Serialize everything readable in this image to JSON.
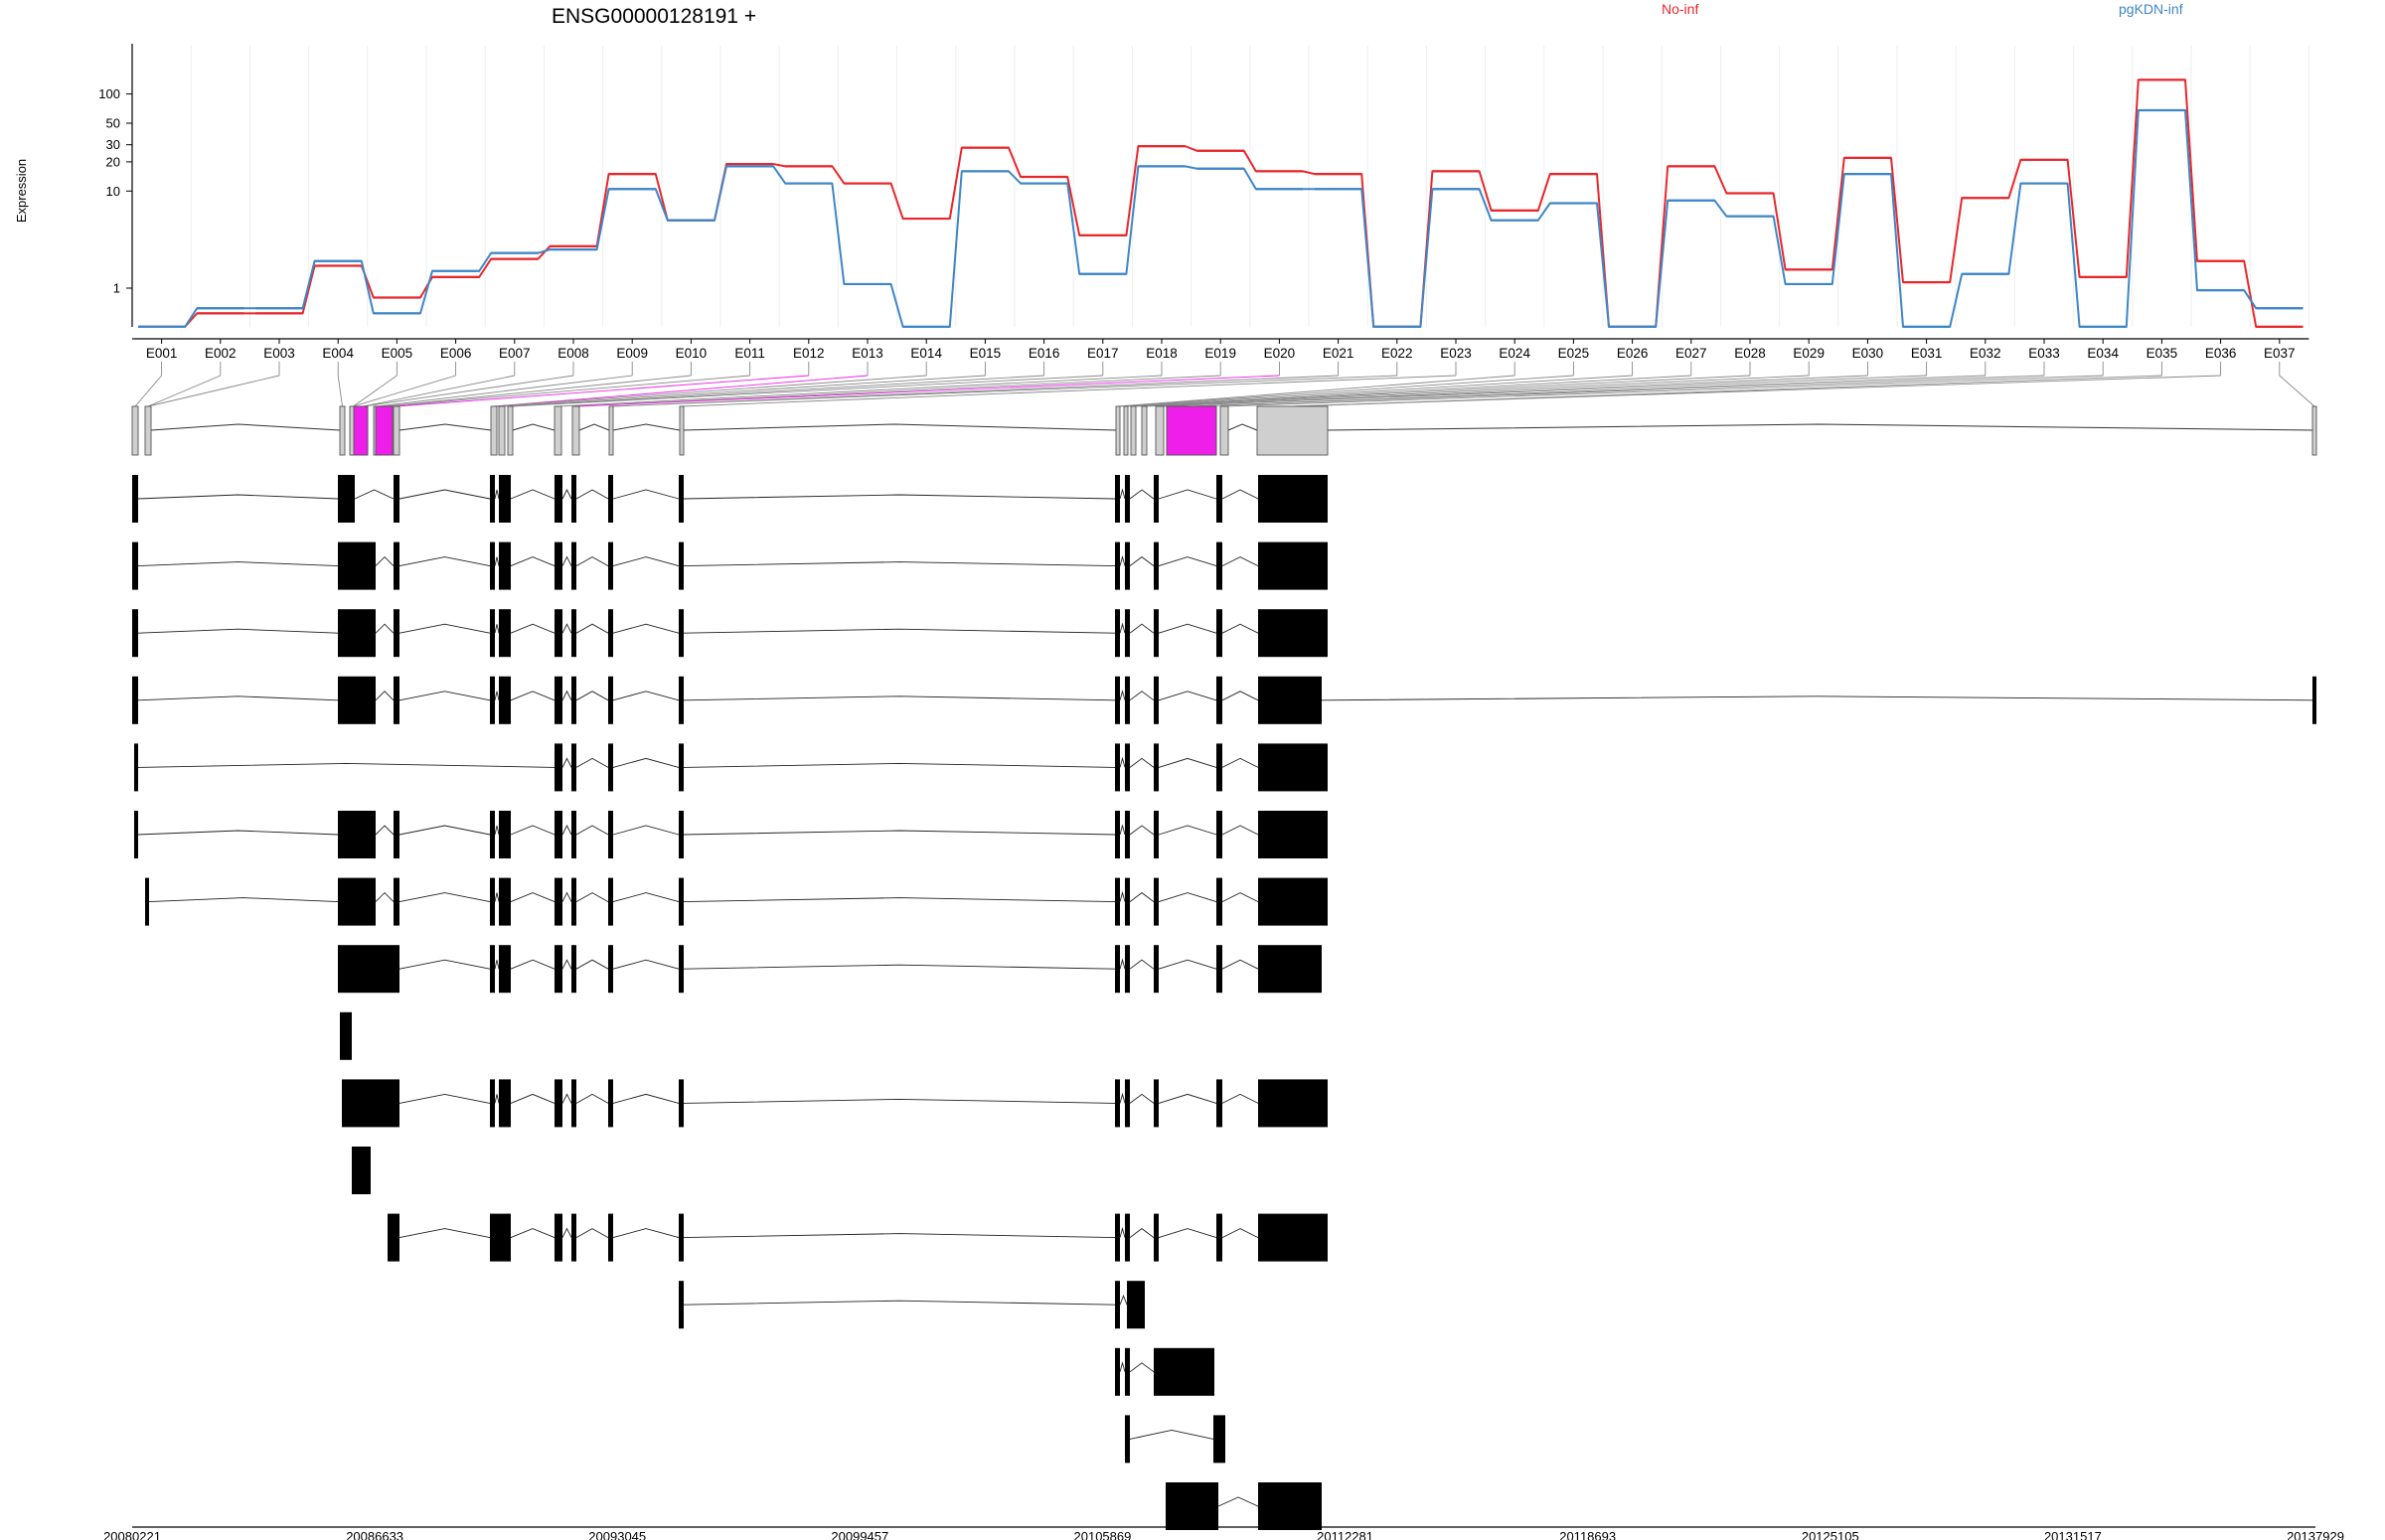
{
  "title": "ENSG00000128191 +",
  "legend": [
    {
      "name": "No-inf",
      "color": "#e8272b"
    },
    {
      "name": "pgKDN-inf",
      "color": "#3f86c7"
    }
  ],
  "chart_data": {
    "type": "line",
    "ylabel": "Expression",
    "yscale": "log",
    "yticks": [
      1,
      10,
      20,
      30,
      50,
      100
    ],
    "categories": [
      "E001",
      "E002",
      "E003",
      "E004",
      "E005",
      "E006",
      "E007",
      "E008",
      "E009",
      "E010",
      "E011",
      "E012",
      "E013",
      "E014",
      "E015",
      "E016",
      "E017",
      "E018",
      "E019",
      "E020",
      "E021",
      "E022",
      "E023",
      "E024",
      "E025",
      "E026",
      "E027",
      "E028",
      "E029",
      "E030",
      "E031",
      "E032",
      "E033",
      "E034",
      "E035",
      "E036",
      "E037"
    ],
    "series": [
      {
        "name": "No-inf",
        "color": "#e8272b",
        "values": [
          0.4,
          0.55,
          0.55,
          1.7,
          0.8,
          1.3,
          2.0,
          2.7,
          15,
          5,
          19,
          18,
          12,
          5.2,
          28,
          14,
          3.5,
          29,
          26,
          16,
          15,
          0.4,
          16,
          6.3,
          15,
          0.4,
          18,
          9.5,
          1.55,
          22,
          1.15,
          8.5,
          21,
          1.3,
          140,
          1.9,
          0.4
        ]
      },
      {
        "name": "pgKDN-inf",
        "color": "#3f86c7",
        "values": [
          0.4,
          0.62,
          0.62,
          1.9,
          0.55,
          1.5,
          2.3,
          2.5,
          10.5,
          5,
          18,
          12,
          1.1,
          0.4,
          16,
          12,
          1.4,
          18,
          17,
          10.5,
          10.5,
          0.4,
          10.5,
          5.0,
          7.5,
          0.4,
          8.0,
          5.5,
          1.1,
          15,
          0.4,
          1.4,
          12,
          0.4,
          68,
          0.95,
          0.62
        ]
      }
    ],
    "genomic_axis_labels": [
      "20080221",
      "20086633",
      "20093045",
      "20099457",
      "20105869",
      "20112281",
      "20118693",
      "20125105",
      "20131517",
      "20137929"
    ],
    "highlighted_exons": [
      "E012",
      "E013",
      "E020"
    ],
    "highlight_color": "#ee1fe8",
    "transcript_count": 16
  }
}
